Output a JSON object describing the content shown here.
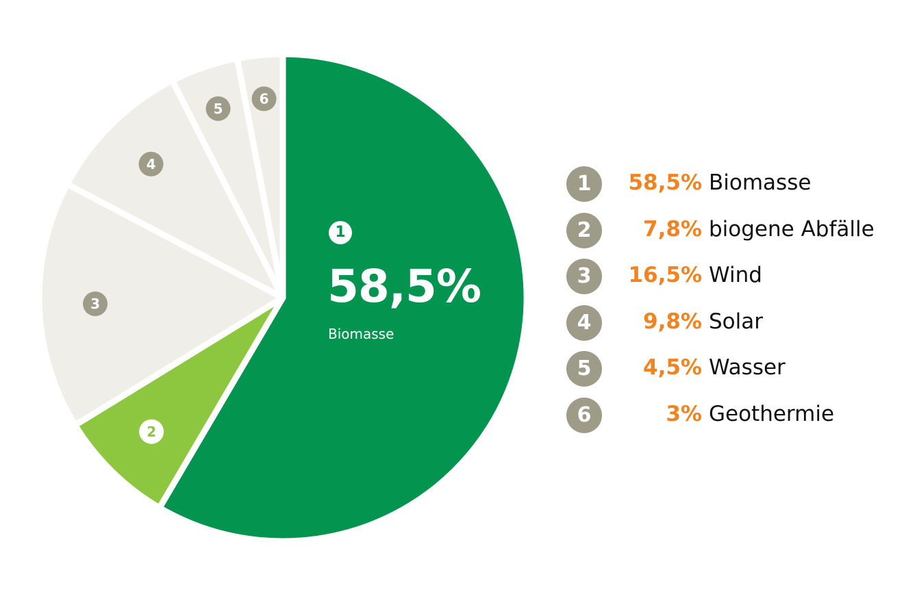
{
  "chart_data": {
    "type": "pie",
    "start_angle": "12 o'clock",
    "direction": "clockwise",
    "slices": [
      {
        "number": "1",
        "label": "Biomasse",
        "value": 58.5,
        "display": "58,5%",
        "color": "#03944f",
        "badge_color": "#ffffff",
        "badge_text_color": "#03944f"
      },
      {
        "number": "2",
        "label": "biogene Abfälle",
        "value": 7.8,
        "display": "7,8%",
        "color": "#8dc63f",
        "badge_color": "#ffffff",
        "badge_text_color": "#8dc63f"
      },
      {
        "number": "3",
        "label": "Wind",
        "value": 16.5,
        "display": "16,5%",
        "color": "#efeee9",
        "badge_color": "#9e9b88",
        "badge_text_color": "#ffffff"
      },
      {
        "number": "4",
        "label": "Solar",
        "value": 9.8,
        "display": "9,8%",
        "color": "#efeee9",
        "badge_color": "#9e9b88",
        "badge_text_color": "#ffffff"
      },
      {
        "number": "5",
        "label": "Wasser",
        "value": 4.5,
        "display": "4,5%",
        "color": "#efeee9",
        "badge_color": "#9e9b88",
        "badge_text_color": "#ffffff"
      },
      {
        "number": "6",
        "label": "Geothermie",
        "value": 3,
        "display": "3%",
        "color": "#efeee9",
        "badge_color": "#9e9b88",
        "badge_text_color": "#ffffff"
      }
    ],
    "highlight": {
      "number": "1",
      "value": "58,5%",
      "label": "Biomasse"
    },
    "legend_placement": "right",
    "legend_badge_color": "#9e9b88",
    "percent_color": "#f08422"
  }
}
